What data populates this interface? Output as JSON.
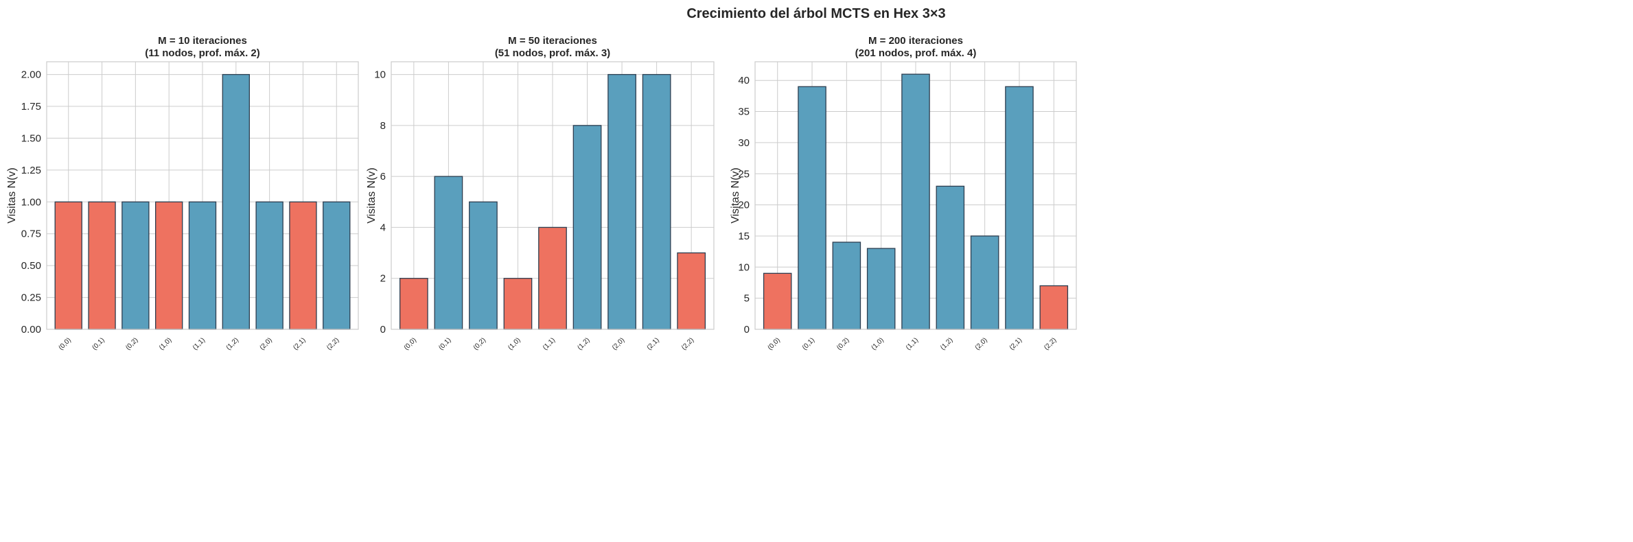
{
  "figure_title": "Crecimiento del árbol MCTS en Hex 3×3",
  "colors": {
    "red": "#E8604C",
    "blue": "#2E86AB",
    "edge": "#2d3e50"
  },
  "chart_data": [
    {
      "type": "bar",
      "title_line1": "M = 10 iteraciones",
      "title_line2": "(11 nodos, prof. máx. 2)",
      "ylabel": "Visitas N(v)",
      "xlabel": "",
      "categories": [
        "(0,0)",
        "(0,1)",
        "(0,2)",
        "(1,0)",
        "(1,1)",
        "(1,2)",
        "(2,0)",
        "(2,1)",
        "(2,2)"
      ],
      "values": [
        1,
        1,
        1,
        1,
        1,
        2,
        1,
        1,
        1
      ],
      "bar_colors": [
        "red",
        "red",
        "blue",
        "red",
        "blue",
        "blue",
        "blue",
        "red",
        "blue"
      ],
      "ylim": [
        0,
        2.1
      ],
      "yticks": [
        "0.00",
        "0.25",
        "0.50",
        "0.75",
        "1.00",
        "1.25",
        "1.50",
        "1.75",
        "2.00"
      ],
      "grid": true
    },
    {
      "type": "bar",
      "title_line1": "M = 50 iteraciones",
      "title_line2": "(51 nodos, prof. máx. 3)",
      "ylabel": "Visitas N(v)",
      "xlabel": "",
      "categories": [
        "(0,0)",
        "(0,1)",
        "(0,2)",
        "(1,0)",
        "(1,1)",
        "(1,2)",
        "(2,0)",
        "(2,1)",
        "(2,2)"
      ],
      "values": [
        2,
        6,
        5,
        2,
        4,
        8,
        10,
        10,
        3
      ],
      "bar_colors": [
        "red",
        "blue",
        "blue",
        "red",
        "red",
        "blue",
        "blue",
        "blue",
        "red"
      ],
      "ylim": [
        0,
        10.5
      ],
      "yticks": [
        "0",
        "2",
        "4",
        "6",
        "8",
        "10"
      ],
      "grid": true
    },
    {
      "type": "bar",
      "title_line1": "M = 200 iteraciones",
      "title_line2": "(201 nodos, prof. máx. 4)",
      "ylabel": "Visitas N(v)",
      "xlabel": "",
      "categories": [
        "(0,0)",
        "(0,1)",
        "(0,2)",
        "(1,0)",
        "(1,1)",
        "(1,2)",
        "(2,0)",
        "(2,1)",
        "(2,2)"
      ],
      "values": [
        9,
        39,
        14,
        13,
        41,
        23,
        15,
        39,
        7
      ],
      "bar_colors": [
        "red",
        "blue",
        "blue",
        "blue",
        "blue",
        "blue",
        "blue",
        "blue",
        "red"
      ],
      "ylim": [
        0,
        43
      ],
      "yticks": [
        "0",
        "5",
        "10",
        "15",
        "20",
        "25",
        "30",
        "35",
        "40"
      ],
      "grid": true
    }
  ]
}
